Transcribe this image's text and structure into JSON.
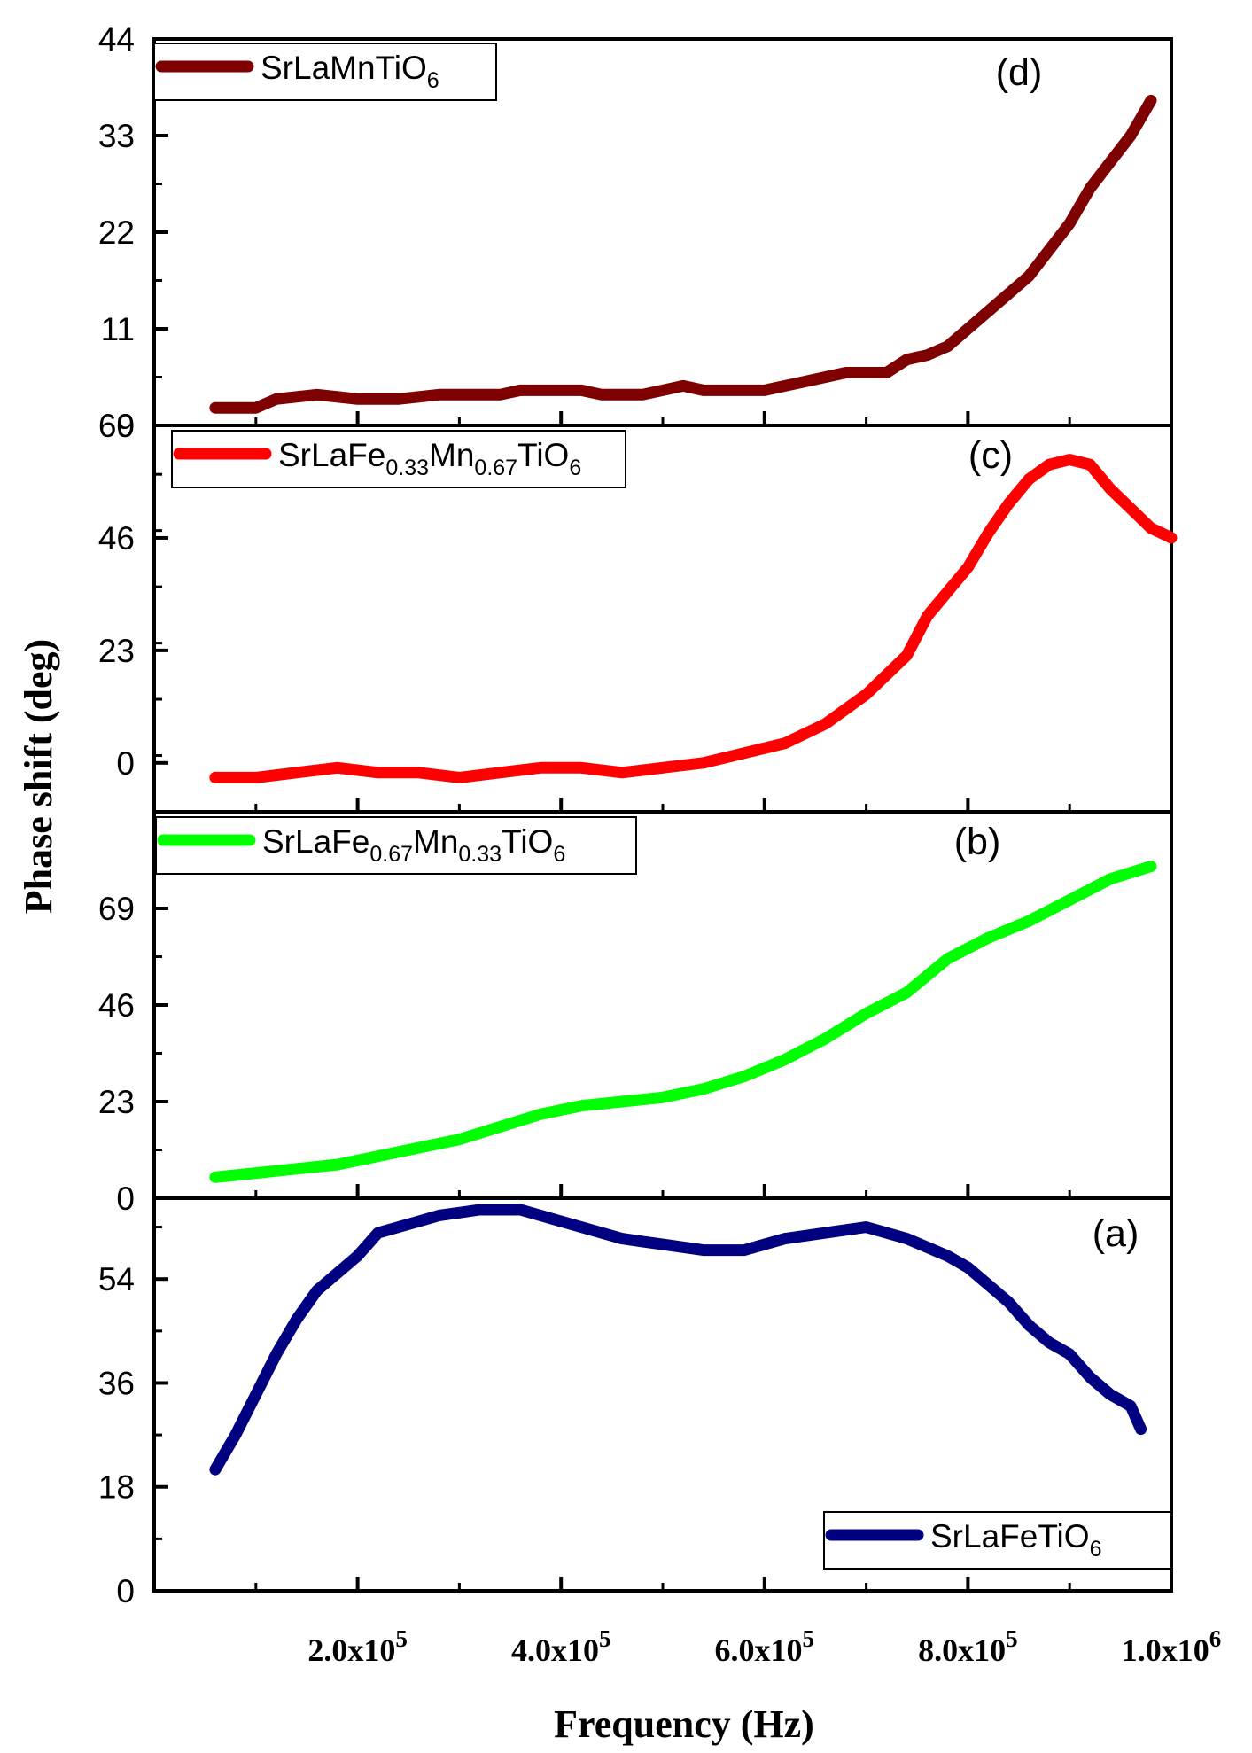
{
  "chart_data": {
    "type": "line",
    "xlabel": "Frequency (Hz)",
    "ylabel": "Phase shift (deg)",
    "xlim": [
      0,
      1000000
    ],
    "x_ticks": [
      {
        "value": 200000,
        "mantissa": "2.0x10",
        "exp": "5"
      },
      {
        "value": 400000,
        "mantissa": "4.0x10",
        "exp": "5"
      },
      {
        "value": 600000,
        "mantissa": "6.0x10",
        "exp": "5"
      },
      {
        "value": 800000,
        "mantissa": "8.0x10",
        "exp": "5"
      },
      {
        "value": 1000000,
        "mantissa": "1.0x10",
        "exp": "6"
      }
    ],
    "panels": [
      {
        "tag": "(d)",
        "ylim": [
          0,
          44
        ],
        "y_ticks": [
          0,
          11,
          22,
          33,
          44
        ],
        "legend_position": "top-left",
        "series": {
          "name_parts": [
            {
              "t": "SrLaMnTiO",
              "sub": false
            },
            {
              "t": "6",
              "sub": true
            }
          ],
          "color": "#7f0000",
          "x": [
            60000,
            100000,
            120000,
            160000,
            200000,
            240000,
            280000,
            340000,
            360000,
            380000,
            420000,
            440000,
            480000,
            520000,
            540000,
            560000,
            600000,
            640000,
            680000,
            720000,
            740000,
            760000,
            780000,
            800000,
            820000,
            840000,
            860000,
            880000,
            900000,
            920000,
            940000,
            960000,
            980000
          ],
          "y": [
            2,
            2,
            3,
            3.5,
            3,
            3,
            3.5,
            3.5,
            4,
            4,
            4,
            3.5,
            3.5,
            4.5,
            4,
            4,
            4,
            5,
            6,
            6,
            7.5,
            8,
            9,
            11,
            13,
            15,
            17,
            20,
            23,
            27,
            30,
            33,
            37
          ]
        }
      },
      {
        "tag": "(c)",
        "ylim": [
          -10,
          69
        ],
        "y_ticks": [
          0,
          23,
          46,
          69
        ],
        "legend_position": "top-left",
        "series": {
          "name_parts": [
            {
              "t": "SrLaFe",
              "sub": false
            },
            {
              "t": "0.33",
              "sub": true
            },
            {
              "t": "Mn",
              "sub": false
            },
            {
              "t": "0.67",
              "sub": true
            },
            {
              "t": "TiO",
              "sub": false
            },
            {
              "t": "6",
              "sub": true
            }
          ],
          "color": "#ff0000",
          "x": [
            60000,
            100000,
            140000,
            180000,
            220000,
            260000,
            300000,
            340000,
            380000,
            420000,
            460000,
            500000,
            540000,
            580000,
            620000,
            660000,
            700000,
            740000,
            760000,
            800000,
            820000,
            840000,
            860000,
            880000,
            900000,
            920000,
            940000,
            960000,
            980000,
            1000000
          ],
          "y": [
            -3,
            -3,
            -2,
            -1,
            -2,
            -2,
            -3,
            -2,
            -1,
            -1,
            -2,
            -1,
            0,
            2,
            4,
            8,
            14,
            22,
            30,
            40,
            47,
            53,
            58,
            61,
            62,
            61,
            56,
            52,
            48,
            46
          ]
        }
      },
      {
        "tag": "(b)",
        "ylim": [
          0,
          92
        ],
        "y_ticks": [
          23,
          46,
          69
        ],
        "legend_position": "top-left",
        "series": {
          "name_parts": [
            {
              "t": "SrLaFe",
              "sub": false
            },
            {
              "t": "0.67",
              "sub": true
            },
            {
              "t": "Mn",
              "sub": false
            },
            {
              "t": "0.33",
              "sub": true
            },
            {
              "t": "TiO",
              "sub": false
            },
            {
              "t": "6",
              "sub": true
            }
          ],
          "color": "#00ff00",
          "x": [
            60000,
            100000,
            140000,
            180000,
            220000,
            260000,
            300000,
            340000,
            380000,
            420000,
            460000,
            500000,
            540000,
            580000,
            620000,
            660000,
            700000,
            740000,
            780000,
            820000,
            860000,
            900000,
            940000,
            980000
          ],
          "y": [
            5,
            6,
            7,
            8,
            10,
            12,
            14,
            17,
            20,
            22,
            23,
            24,
            26,
            29,
            33,
            38,
            44,
            49,
            57,
            62,
            66,
            71,
            76,
            79
          ]
        }
      },
      {
        "tag": "(a)",
        "ylim": [
          0,
          68
        ],
        "y_ticks": [
          0,
          18,
          36,
          54
        ],
        "top_label": "0",
        "legend_position": "bottom-right",
        "series": {
          "name_parts": [
            {
              "t": "SrLaFeTiO",
              "sub": false
            },
            {
              "t": "6",
              "sub": true
            }
          ],
          "color": "#000080",
          "x": [
            60000,
            80000,
            100000,
            120000,
            140000,
            160000,
            180000,
            200000,
            220000,
            240000,
            260000,
            280000,
            300000,
            320000,
            340000,
            360000,
            380000,
            400000,
            420000,
            440000,
            460000,
            480000,
            500000,
            540000,
            580000,
            620000,
            660000,
            700000,
            740000,
            780000,
            800000,
            820000,
            840000,
            860000,
            880000,
            900000,
            920000,
            940000,
            960000,
            970000
          ],
          "y": [
            21,
            27,
            34,
            41,
            47,
            52,
            55,
            58,
            62,
            63,
            64,
            65,
            65.5,
            66,
            66,
            66,
            65,
            64,
            63,
            62,
            61,
            60.5,
            60,
            59,
            59,
            61,
            62,
            63,
            61,
            58,
            56,
            53,
            50,
            46,
            43,
            41,
            37,
            34,
            32,
            28
          ]
        }
      }
    ]
  }
}
